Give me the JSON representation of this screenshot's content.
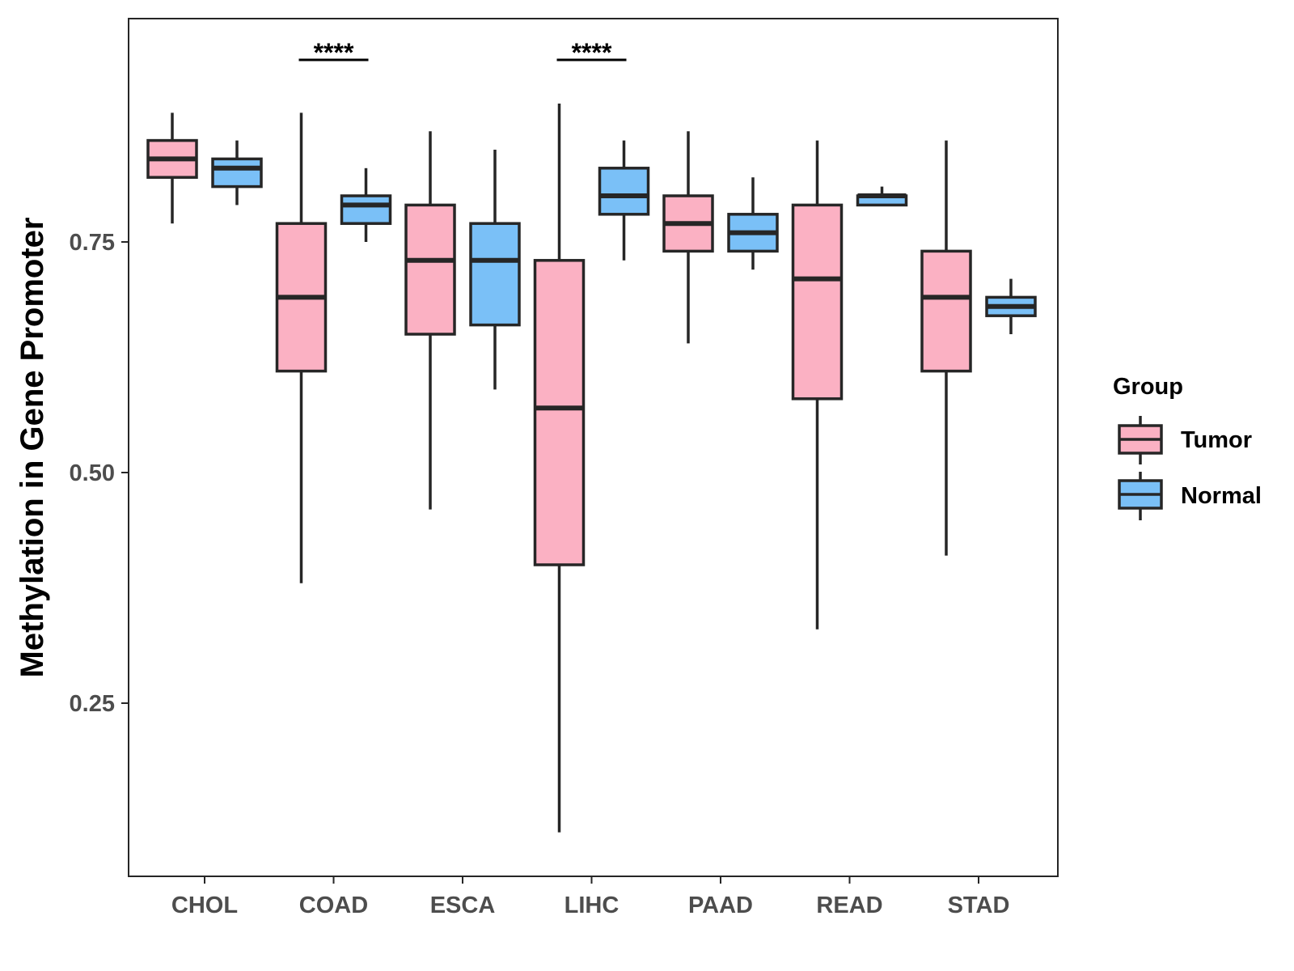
{
  "chart_data": {
    "type": "boxplot",
    "title": "",
    "xlabel": "",
    "ylabel": "Methylation in Gene Promoter",
    "ylim": [
      0.07,
      1.0
    ],
    "yticks": [
      0.25,
      0.5,
      0.75
    ],
    "ytick_labels": [
      "0.25",
      "0.50",
      "0.75"
    ],
    "categories": [
      "CHOL",
      "COAD",
      "ESCA",
      "LIHC",
      "PAAD",
      "READ",
      "STAD"
    ],
    "legend": {
      "title": "Group",
      "position": "right",
      "entries": [
        {
          "name": "Tumor",
          "color": "#fbb1c3"
        },
        {
          "name": "Normal",
          "color": "#7ac0f7"
        }
      ]
    },
    "series": [
      {
        "name": "Tumor",
        "color": "#fbb1c3",
        "boxes": [
          {
            "category": "CHOL",
            "min": 0.77,
            "q1": 0.82,
            "median": 0.84,
            "q3": 0.86,
            "max": 0.89
          },
          {
            "category": "COAD",
            "min": 0.38,
            "q1": 0.61,
            "median": 0.69,
            "q3": 0.77,
            "max": 0.89
          },
          {
            "category": "ESCA",
            "min": 0.46,
            "q1": 0.65,
            "median": 0.73,
            "q3": 0.79,
            "max": 0.87
          },
          {
            "category": "LIHC",
            "min": 0.11,
            "q1": 0.4,
            "median": 0.57,
            "q3": 0.73,
            "max": 0.9
          },
          {
            "category": "PAAD",
            "min": 0.64,
            "q1": 0.74,
            "median": 0.77,
            "q3": 0.8,
            "max": 0.87
          },
          {
            "category": "READ",
            "min": 0.33,
            "q1": 0.58,
            "median": 0.71,
            "q3": 0.79,
            "max": 0.86
          },
          {
            "category": "STAD",
            "min": 0.41,
            "q1": 0.61,
            "median": 0.69,
            "q3": 0.74,
            "max": 0.86
          }
        ]
      },
      {
        "name": "Normal",
        "color": "#7ac0f7",
        "boxes": [
          {
            "category": "CHOL",
            "min": 0.79,
            "q1": 0.81,
            "median": 0.83,
            "q3": 0.84,
            "max": 0.86
          },
          {
            "category": "COAD",
            "min": 0.75,
            "q1": 0.77,
            "median": 0.79,
            "q3": 0.8,
            "max": 0.83
          },
          {
            "category": "ESCA",
            "min": 0.59,
            "q1": 0.66,
            "median": 0.73,
            "q3": 0.77,
            "max": 0.85
          },
          {
            "category": "LIHC",
            "min": 0.73,
            "q1": 0.78,
            "median": 0.8,
            "q3": 0.83,
            "max": 0.86
          },
          {
            "category": "PAAD",
            "min": 0.72,
            "q1": 0.74,
            "median": 0.76,
            "q3": 0.78,
            "max": 0.82
          },
          {
            "category": "READ",
            "min": 0.79,
            "q1": 0.79,
            "median": 0.8,
            "q3": 0.8,
            "max": 0.81
          },
          {
            "category": "STAD",
            "min": 0.65,
            "q1": 0.67,
            "median": 0.68,
            "q3": 0.69,
            "max": 0.71
          }
        ]
      }
    ],
    "annotations": [
      {
        "category": "COAD",
        "text": "****"
      },
      {
        "category": "LIHC",
        "text": "****"
      }
    ]
  }
}
